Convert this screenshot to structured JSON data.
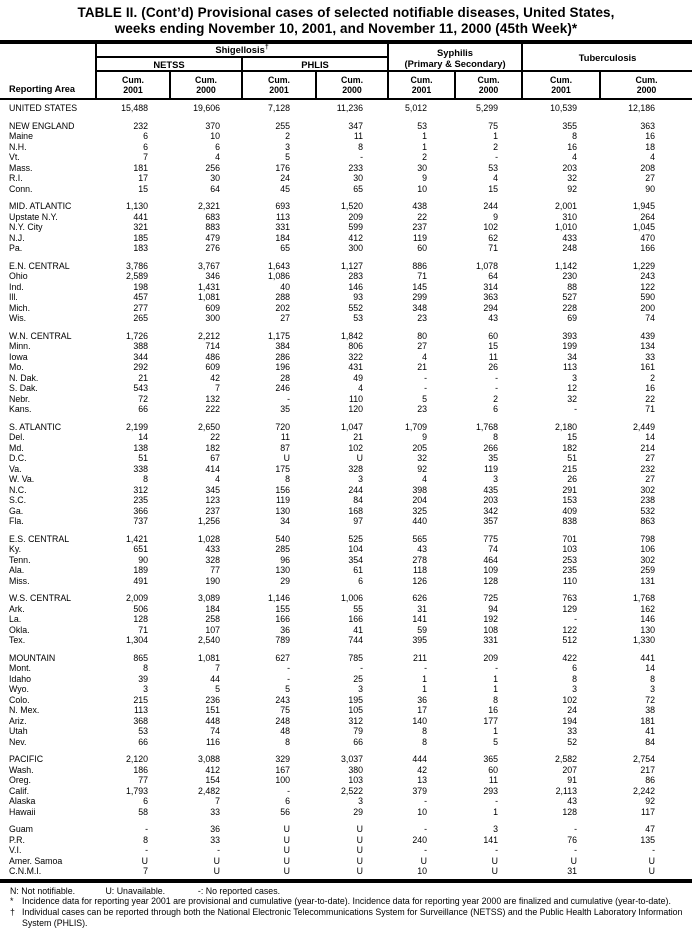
{
  "title": {
    "line1": "TABLE II. (Cont’d) Provisional cases of selected notifiable diseases, United States,",
    "line2": "weeks ending November 10, 2001, and November 11, 2000 (45th Week)*"
  },
  "header": {
    "reporting_area": "Reporting Area",
    "shigellosis": {
      "label": "Shigellosis",
      "footnote_mark": "†",
      "subgroups": [
        "NETSS",
        "PHLIS"
      ]
    },
    "syphilis": {
      "line1": "Syphilis",
      "line2": "(Primary & Secondary)"
    },
    "tuberculosis": {
      "label": "Tuberculosis"
    },
    "cum_label": "Cum.",
    "years": [
      "2001",
      "2000",
      "2001",
      "2000",
      "2001",
      "2000",
      "2001",
      "2000"
    ]
  },
  "chart_data": {
    "type": "table",
    "title": "TABLE II. (Cont'd) Provisional cases of selected notifiable diseases, United States, weeks ending November 10, 2001, and November 11, 2000 (45th Week)",
    "columns": [
      "Reporting Area",
      "Shigellosis NETSS Cum. 2001",
      "Shigellosis NETSS Cum. 2000",
      "Shigellosis PHLIS Cum. 2001",
      "Shigellosis PHLIS Cum. 2000",
      "Syphilis (Primary & Secondary) Cum. 2001",
      "Syphilis (Primary & Secondary) Cum. 2000",
      "Tuberculosis Cum. 2001",
      "Tuberculosis Cum. 2000"
    ]
  },
  "rows": [
    {
      "area": "UNITED STATES",
      "gap": "sm",
      "values": [
        "15,488",
        "19,606",
        "7,128",
        "11,236",
        "5,012",
        "5,299",
        "10,539",
        "12,186"
      ]
    },
    {
      "area": "NEW ENGLAND",
      "gap": "lg",
      "values": [
        "232",
        "370",
        "255",
        "347",
        "53",
        "75",
        "355",
        "363"
      ]
    },
    {
      "area": "Maine",
      "values": [
        "6",
        "10",
        "2",
        "11",
        "1",
        "1",
        "8",
        "16"
      ]
    },
    {
      "area": "N.H.",
      "values": [
        "6",
        "6",
        "3",
        "8",
        "1",
        "2",
        "16",
        "18"
      ]
    },
    {
      "area": "Vt.",
      "values": [
        "7",
        "4",
        "5",
        "-",
        "2",
        "-",
        "4",
        "4"
      ]
    },
    {
      "area": "Mass.",
      "values": [
        "181",
        "256",
        "176",
        "233",
        "30",
        "53",
        "203",
        "208"
      ]
    },
    {
      "area": "R.I.",
      "values": [
        "17",
        "30",
        "24",
        "30",
        "9",
        "4",
        "32",
        "27"
      ]
    },
    {
      "area": "Conn.",
      "values": [
        "15",
        "64",
        "45",
        "65",
        "10",
        "15",
        "92",
        "90"
      ]
    },
    {
      "area": "MID. ATLANTIC",
      "gap": "lg",
      "values": [
        "1,130",
        "2,321",
        "693",
        "1,520",
        "438",
        "244",
        "2,001",
        "1,945"
      ]
    },
    {
      "area": "Upstate N.Y.",
      "values": [
        "441",
        "683",
        "113",
        "209",
        "22",
        "9",
        "310",
        "264"
      ]
    },
    {
      "area": "N.Y. City",
      "values": [
        "321",
        "883",
        "331",
        "599",
        "237",
        "102",
        "1,010",
        "1,045"
      ]
    },
    {
      "area": "N.J.",
      "values": [
        "185",
        "479",
        "184",
        "412",
        "119",
        "62",
        "433",
        "470"
      ]
    },
    {
      "area": "Pa.",
      "values": [
        "183",
        "276",
        "65",
        "300",
        "60",
        "71",
        "248",
        "166"
      ]
    },
    {
      "area": "E.N. CENTRAL",
      "gap": "lg",
      "values": [
        "3,786",
        "3,767",
        "1,643",
        "1,127",
        "886",
        "1,078",
        "1,142",
        "1,229"
      ]
    },
    {
      "area": "Ohio",
      "values": [
        "2,589",
        "346",
        "1,086",
        "283",
        "71",
        "64",
        "230",
        "243"
      ]
    },
    {
      "area": "Ind.",
      "values": [
        "198",
        "1,431",
        "40",
        "146",
        "145",
        "314",
        "88",
        "122"
      ]
    },
    {
      "area": "Ill.",
      "values": [
        "457",
        "1,081",
        "288",
        "93",
        "299",
        "363",
        "527",
        "590"
      ]
    },
    {
      "area": "Mich.",
      "values": [
        "277",
        "609",
        "202",
        "552",
        "348",
        "294",
        "228",
        "200"
      ]
    },
    {
      "area": "Wis.",
      "values": [
        "265",
        "300",
        "27",
        "53",
        "23",
        "43",
        "69",
        "74"
      ]
    },
    {
      "area": "W.N. CENTRAL",
      "gap": "lg",
      "values": [
        "1,726",
        "2,212",
        "1,175",
        "1,842",
        "80",
        "60",
        "393",
        "439"
      ]
    },
    {
      "area": "Minn.",
      "values": [
        "388",
        "714",
        "384",
        "806",
        "27",
        "15",
        "199",
        "134"
      ]
    },
    {
      "area": "Iowa",
      "values": [
        "344",
        "486",
        "286",
        "322",
        "4",
        "11",
        "34",
        "33"
      ]
    },
    {
      "area": "Mo.",
      "values": [
        "292",
        "609",
        "196",
        "431",
        "21",
        "26",
        "113",
        "161"
      ]
    },
    {
      "area": "N. Dak.",
      "values": [
        "21",
        "42",
        "28",
        "49",
        "-",
        "-",
        "3",
        "2"
      ]
    },
    {
      "area": "S. Dak.",
      "values": [
        "543",
        "7",
        "246",
        "4",
        "-",
        "-",
        "12",
        "16"
      ]
    },
    {
      "area": "Nebr.",
      "values": [
        "72",
        "132",
        "-",
        "110",
        "5",
        "2",
        "32",
        "22"
      ]
    },
    {
      "area": "Kans.",
      "values": [
        "66",
        "222",
        "35",
        "120",
        "23",
        "6",
        "-",
        "71"
      ]
    },
    {
      "area": "S. ATLANTIC",
      "gap": "lg",
      "values": [
        "2,199",
        "2,650",
        "720",
        "1,047",
        "1,709",
        "1,768",
        "2,180",
        "2,449"
      ]
    },
    {
      "area": "Del.",
      "values": [
        "14",
        "22",
        "11",
        "21",
        "9",
        "8",
        "15",
        "14"
      ]
    },
    {
      "area": "Md.",
      "values": [
        "138",
        "182",
        "87",
        "102",
        "205",
        "266",
        "182",
        "214"
      ]
    },
    {
      "area": "D.C.",
      "values": [
        "51",
        "67",
        "U",
        "U",
        "32",
        "35",
        "51",
        "27"
      ]
    },
    {
      "area": "Va.",
      "values": [
        "338",
        "414",
        "175",
        "328",
        "92",
        "119",
        "215",
        "232"
      ]
    },
    {
      "area": "W. Va.",
      "values": [
        "8",
        "4",
        "8",
        "3",
        "4",
        "3",
        "26",
        "27"
      ]
    },
    {
      "area": "N.C.",
      "values": [
        "312",
        "345",
        "156",
        "244",
        "398",
        "435",
        "291",
        "302"
      ]
    },
    {
      "area": "S.C.",
      "values": [
        "235",
        "123",
        "119",
        "84",
        "204",
        "203",
        "153",
        "238"
      ]
    },
    {
      "area": "Ga.",
      "values": [
        "366",
        "237",
        "130",
        "168",
        "325",
        "342",
        "409",
        "532"
      ]
    },
    {
      "area": "Fla.",
      "values": [
        "737",
        "1,256",
        "34",
        "97",
        "440",
        "357",
        "838",
        "863"
      ]
    },
    {
      "area": "E.S. CENTRAL",
      "gap": "lg",
      "values": [
        "1,421",
        "1,028",
        "540",
        "525",
        "565",
        "775",
        "701",
        "798"
      ]
    },
    {
      "area": "Ky.",
      "values": [
        "651",
        "433",
        "285",
        "104",
        "43",
        "74",
        "103",
        "106"
      ]
    },
    {
      "area": "Tenn.",
      "values": [
        "90",
        "328",
        "96",
        "354",
        "278",
        "464",
        "253",
        "302"
      ]
    },
    {
      "area": "Ala.",
      "values": [
        "189",
        "77",
        "130",
        "61",
        "118",
        "109",
        "235",
        "259"
      ]
    },
    {
      "area": "Miss.",
      "values": [
        "491",
        "190",
        "29",
        "6",
        "126",
        "128",
        "110",
        "131"
      ]
    },
    {
      "area": "W.S. CENTRAL",
      "gap": "lg",
      "values": [
        "2,009",
        "3,089",
        "1,146",
        "1,006",
        "626",
        "725",
        "763",
        "1,768"
      ]
    },
    {
      "area": "Ark.",
      "values": [
        "506",
        "184",
        "155",
        "55",
        "31",
        "94",
        "129",
        "162"
      ]
    },
    {
      "area": "La.",
      "values": [
        "128",
        "258",
        "166",
        "166",
        "141",
        "192",
        "-",
        "146"
      ]
    },
    {
      "area": "Okla.",
      "values": [
        "71",
        "107",
        "36",
        "41",
        "59",
        "108",
        "122",
        "130"
      ]
    },
    {
      "area": "Tex.",
      "values": [
        "1,304",
        "2,540",
        "789",
        "744",
        "395",
        "331",
        "512",
        "1,330"
      ]
    },
    {
      "area": "MOUNTAIN",
      "gap": "lg",
      "values": [
        "865",
        "1,081",
        "627",
        "785",
        "211",
        "209",
        "422",
        "441"
      ]
    },
    {
      "area": "Mont.",
      "values": [
        "8",
        "7",
        "-",
        "-",
        "-",
        "-",
        "6",
        "14"
      ]
    },
    {
      "area": "Idaho",
      "values": [
        "39",
        "44",
        "-",
        "25",
        "1",
        "1",
        "8",
        "8"
      ]
    },
    {
      "area": "Wyo.",
      "values": [
        "3",
        "5",
        "5",
        "3",
        "1",
        "1",
        "3",
        "3"
      ]
    },
    {
      "area": "Colo.",
      "values": [
        "215",
        "236",
        "243",
        "195",
        "36",
        "8",
        "102",
        "72"
      ]
    },
    {
      "area": "N. Mex.",
      "values": [
        "113",
        "151",
        "75",
        "105",
        "17",
        "16",
        "24",
        "38"
      ]
    },
    {
      "area": "Ariz.",
      "values": [
        "368",
        "448",
        "248",
        "312",
        "140",
        "177",
        "194",
        "181"
      ]
    },
    {
      "area": "Utah",
      "values": [
        "53",
        "74",
        "48",
        "79",
        "8",
        "1",
        "33",
        "41"
      ]
    },
    {
      "area": "Nev.",
      "values": [
        "66",
        "116",
        "8",
        "66",
        "8",
        "5",
        "52",
        "84"
      ]
    },
    {
      "area": "PACIFIC",
      "gap": "lg",
      "values": [
        "2,120",
        "3,088",
        "329",
        "3,037",
        "444",
        "365",
        "2,582",
        "2,754"
      ]
    },
    {
      "area": "Wash.",
      "values": [
        "186",
        "412",
        "167",
        "380",
        "42",
        "60",
        "207",
        "217"
      ]
    },
    {
      "area": "Oreg.",
      "values": [
        "77",
        "154",
        "100",
        "103",
        "13",
        "11",
        "91",
        "86"
      ]
    },
    {
      "area": "Calif.",
      "values": [
        "1,793",
        "2,482",
        "-",
        "2,522",
        "379",
        "293",
        "2,113",
        "2,242"
      ]
    },
    {
      "area": "Alaska",
      "values": [
        "6",
        "7",
        "6",
        "3",
        "-",
        "-",
        "43",
        "92"
      ]
    },
    {
      "area": "Hawaii",
      "values": [
        "58",
        "33",
        "56",
        "29",
        "10",
        "1",
        "128",
        "117"
      ]
    },
    {
      "area": "Guam",
      "gap": "lg",
      "values": [
        "-",
        "36",
        "U",
        "U",
        "-",
        "3",
        "-",
        "47"
      ]
    },
    {
      "area": "P.R.",
      "values": [
        "8",
        "33",
        "U",
        "U",
        "240",
        "141",
        "76",
        "135"
      ]
    },
    {
      "area": "V.I.",
      "values": [
        "-",
        "-",
        "U",
        "U",
        "-",
        "-",
        "-",
        "-"
      ]
    },
    {
      "area": "Amer. Samoa",
      "values": [
        "U",
        "U",
        "U",
        "U",
        "U",
        "U",
        "U",
        "U"
      ]
    },
    {
      "area": "C.N.M.I.",
      "values": [
        "7",
        "U",
        "U",
        "U",
        "10",
        "U",
        "31",
        "U"
      ]
    }
  ],
  "footnotes": {
    "legend": [
      "N: Not notifiable.",
      "U: Unavailable.",
      "-: No reported cases."
    ],
    "star": {
      "marker": "*",
      "text": "Incidence data for reporting year 2001 are provisional and cumulative (year-to-date). Incidence data for reporting year 2000 are finalized and cumulative (year-to-date)."
    },
    "dagger": {
      "marker": "†",
      "text": "Individual cases can be reported through both the National Electronic Telecommunications System for Surveillance (NETSS) and the Public Health Laboratory Information System (PHLIS)."
    }
  }
}
